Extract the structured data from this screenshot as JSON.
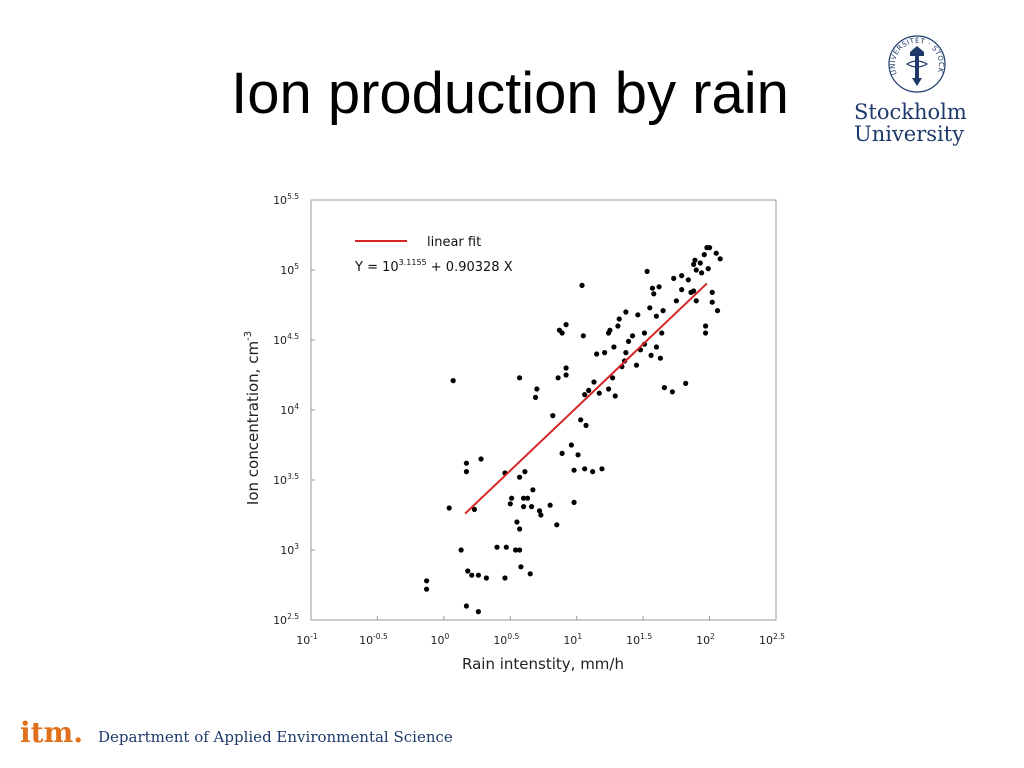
{
  "slide": {
    "title": "Ion production by rain"
  },
  "logo": {
    "line1": "Stockholm",
    "line2": "University",
    "seal_text": "UNIVERSITET · STOCKHOLMS"
  },
  "footer": {
    "brand": "itm.",
    "department": "Department of Applied Environmental Science"
  },
  "colors": {
    "fit_line": "#d62728",
    "points": "#000000",
    "footer_brand": "#e0711a",
    "logo_blue": "#1e3a6a"
  },
  "chart_data": {
    "type": "scatter",
    "xlabel": "Rain intenstity, mm/h",
    "ylabel": "Ion concentration, cm",
    "ylabel_sup": "-3",
    "x_scale": "log10",
    "y_scale": "log10",
    "xlim_exponent": [
      -1,
      2.5
    ],
    "ylim_exponent": [
      2.5,
      5.5
    ],
    "x_tick_labels": [
      {
        "base": "10",
        "exp": "-1"
      },
      {
        "base": "10",
        "exp": "-0.5"
      },
      {
        "base": "10",
        "exp": "0"
      },
      {
        "base": "10",
        "exp": "0.5"
      },
      {
        "base": "10",
        "exp": "1"
      },
      {
        "base": "10",
        "exp": "1.5"
      },
      {
        "base": "10",
        "exp": "2"
      },
      {
        "base": "10",
        "exp": "2.5"
      }
    ],
    "y_tick_labels": [
      {
        "base": "10",
        "exp": "2.5"
      },
      {
        "base": "10",
        "exp": "3"
      },
      {
        "base": "10",
        "exp": "3.5"
      },
      {
        "base": "10",
        "exp": "4"
      },
      {
        "base": "10",
        "exp": "4.5"
      },
      {
        "base": "10",
        "exp": "5"
      },
      {
        "base": "10",
        "exp": "5.5"
      }
    ],
    "grid": false,
    "legend": {
      "placement": "top-left",
      "label": "linear fit",
      "equation_prefix": "Y = 10",
      "equation_exp": "3.1155",
      "equation_suffix": " + 0.90328 X"
    },
    "fit": {
      "intercept_log10": 3.1155,
      "slope": 0.90328,
      "x_log10_range": [
        0.16,
        1.98
      ]
    },
    "points_log10": [
      [
        -0.13,
        2.78
      ],
      [
        -0.13,
        2.72
      ],
      [
        0.07,
        4.21
      ],
      [
        0.04,
        3.3
      ],
      [
        0.13,
        3.0
      ],
      [
        0.17,
        2.6
      ],
      [
        0.18,
        2.85
      ],
      [
        0.17,
        3.62
      ],
      [
        0.17,
        3.56
      ],
      [
        0.23,
        3.29
      ],
      [
        0.21,
        2.82
      ],
      [
        0.26,
        2.56
      ],
      [
        0.26,
        2.82
      ],
      [
        0.28,
        3.65
      ],
      [
        0.32,
        2.8
      ],
      [
        0.4,
        3.02
      ],
      [
        0.46,
        2.8
      ],
      [
        0.46,
        3.55
      ],
      [
        0.47,
        3.02
      ],
      [
        0.5,
        3.33
      ],
      [
        0.51,
        3.37
      ],
      [
        0.54,
        3.0
      ],
      [
        0.55,
        3.2
      ],
      [
        0.57,
        3.15
      ],
      [
        0.57,
        3.0
      ],
      [
        0.57,
        3.52
      ],
      [
        0.57,
        4.23
      ],
      [
        0.58,
        2.88
      ],
      [
        0.6,
        3.37
      ],
      [
        0.6,
        3.31
      ],
      [
        0.61,
        3.56
      ],
      [
        0.63,
        3.37
      ],
      [
        0.65,
        2.83
      ],
      [
        0.66,
        3.31
      ],
      [
        0.67,
        3.43
      ],
      [
        0.69,
        4.09
      ],
      [
        0.7,
        4.15
      ],
      [
        0.72,
        3.28
      ],
      [
        0.73,
        3.25
      ],
      [
        0.8,
        3.32
      ],
      [
        0.82,
        3.96
      ],
      [
        0.85,
        3.18
      ],
      [
        0.86,
        4.23
      ],
      [
        0.87,
        4.57
      ],
      [
        0.89,
        3.69
      ],
      [
        0.89,
        4.55
      ],
      [
        0.92,
        4.3
      ],
      [
        0.92,
        4.25
      ],
      [
        0.92,
        4.61
      ],
      [
        0.96,
        3.75
      ],
      [
        0.98,
        3.34
      ],
      [
        0.98,
        3.57
      ],
      [
        1.01,
        3.68
      ],
      [
        1.03,
        3.93
      ],
      [
        1.04,
        4.89
      ],
      [
        1.05,
        4.53
      ],
      [
        1.06,
        3.58
      ],
      [
        1.06,
        4.11
      ],
      [
        1.07,
        3.89
      ],
      [
        1.09,
        4.14
      ],
      [
        1.12,
        3.56
      ],
      [
        1.13,
        4.2
      ],
      [
        1.15,
        4.4
      ],
      [
        1.17,
        4.12
      ],
      [
        1.19,
        3.58
      ],
      [
        1.21,
        4.41
      ],
      [
        1.24,
        4.15
      ],
      [
        1.24,
        4.55
      ],
      [
        1.25,
        4.57
      ],
      [
        1.27,
        4.23
      ],
      [
        1.28,
        4.45
      ],
      [
        1.29,
        4.1
      ],
      [
        1.31,
        4.6
      ],
      [
        1.32,
        4.65
      ],
      [
        1.34,
        4.31
      ],
      [
        1.36,
        4.35
      ],
      [
        1.37,
        4.41
      ],
      [
        1.37,
        4.7
      ],
      [
        1.39,
        4.49
      ],
      [
        1.42,
        4.53
      ],
      [
        1.45,
        4.32
      ],
      [
        1.46,
        4.68
      ],
      [
        1.48,
        4.43
      ],
      [
        1.51,
        4.55
      ],
      [
        1.51,
        4.47
      ],
      [
        1.53,
        4.99
      ],
      [
        1.55,
        4.73
      ],
      [
        1.56,
        4.39
      ],
      [
        1.57,
        4.87
      ],
      [
        1.58,
        4.83
      ],
      [
        1.6,
        4.67
      ],
      [
        1.6,
        4.45
      ],
      [
        1.62,
        4.88
      ],
      [
        1.63,
        4.37
      ],
      [
        1.64,
        4.55
      ],
      [
        1.65,
        4.71
      ],
      [
        1.66,
        4.16
      ],
      [
        1.72,
        4.13
      ],
      [
        1.73,
        4.94
      ],
      [
        1.75,
        4.78
      ],
      [
        1.79,
        4.96
      ],
      [
        1.79,
        4.86
      ],
      [
        1.82,
        4.19
      ],
      [
        1.84,
        4.93
      ],
      [
        1.86,
        4.84
      ],
      [
        1.88,
        4.85
      ],
      [
        1.88,
        5.04
      ],
      [
        1.89,
        5.07
      ],
      [
        1.9,
        5.0
      ],
      [
        1.9,
        4.78
      ],
      [
        1.93,
        5.05
      ],
      [
        1.94,
        4.98
      ],
      [
        1.96,
        5.11
      ],
      [
        1.97,
        4.6
      ],
      [
        1.97,
        4.55
      ],
      [
        1.98,
        5.16
      ],
      [
        1.99,
        5.01
      ],
      [
        2.0,
        5.16
      ],
      [
        2.02,
        4.84
      ],
      [
        2.02,
        4.77
      ],
      [
        2.05,
        5.12
      ],
      [
        2.06,
        4.71
      ],
      [
        2.08,
        5.08
      ]
    ]
  }
}
